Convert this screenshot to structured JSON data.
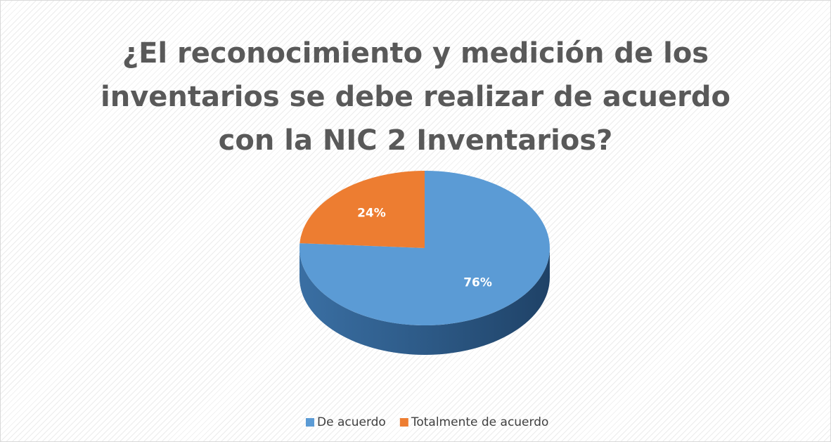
{
  "chart_data": {
    "type": "pie",
    "title": "¿El reconocimiento y medición de los inventarios se debe realizar de acuerdo con la NIC 2 Inventarios?",
    "categories": [
      "De acuerdo",
      "Totalmente de acuerdo"
    ],
    "values": [
      76,
      24
    ],
    "value_labels": [
      "76%",
      "24%"
    ],
    "colors": [
      "#5b9bd5",
      "#ed7d31"
    ],
    "legend": "bottom"
  }
}
